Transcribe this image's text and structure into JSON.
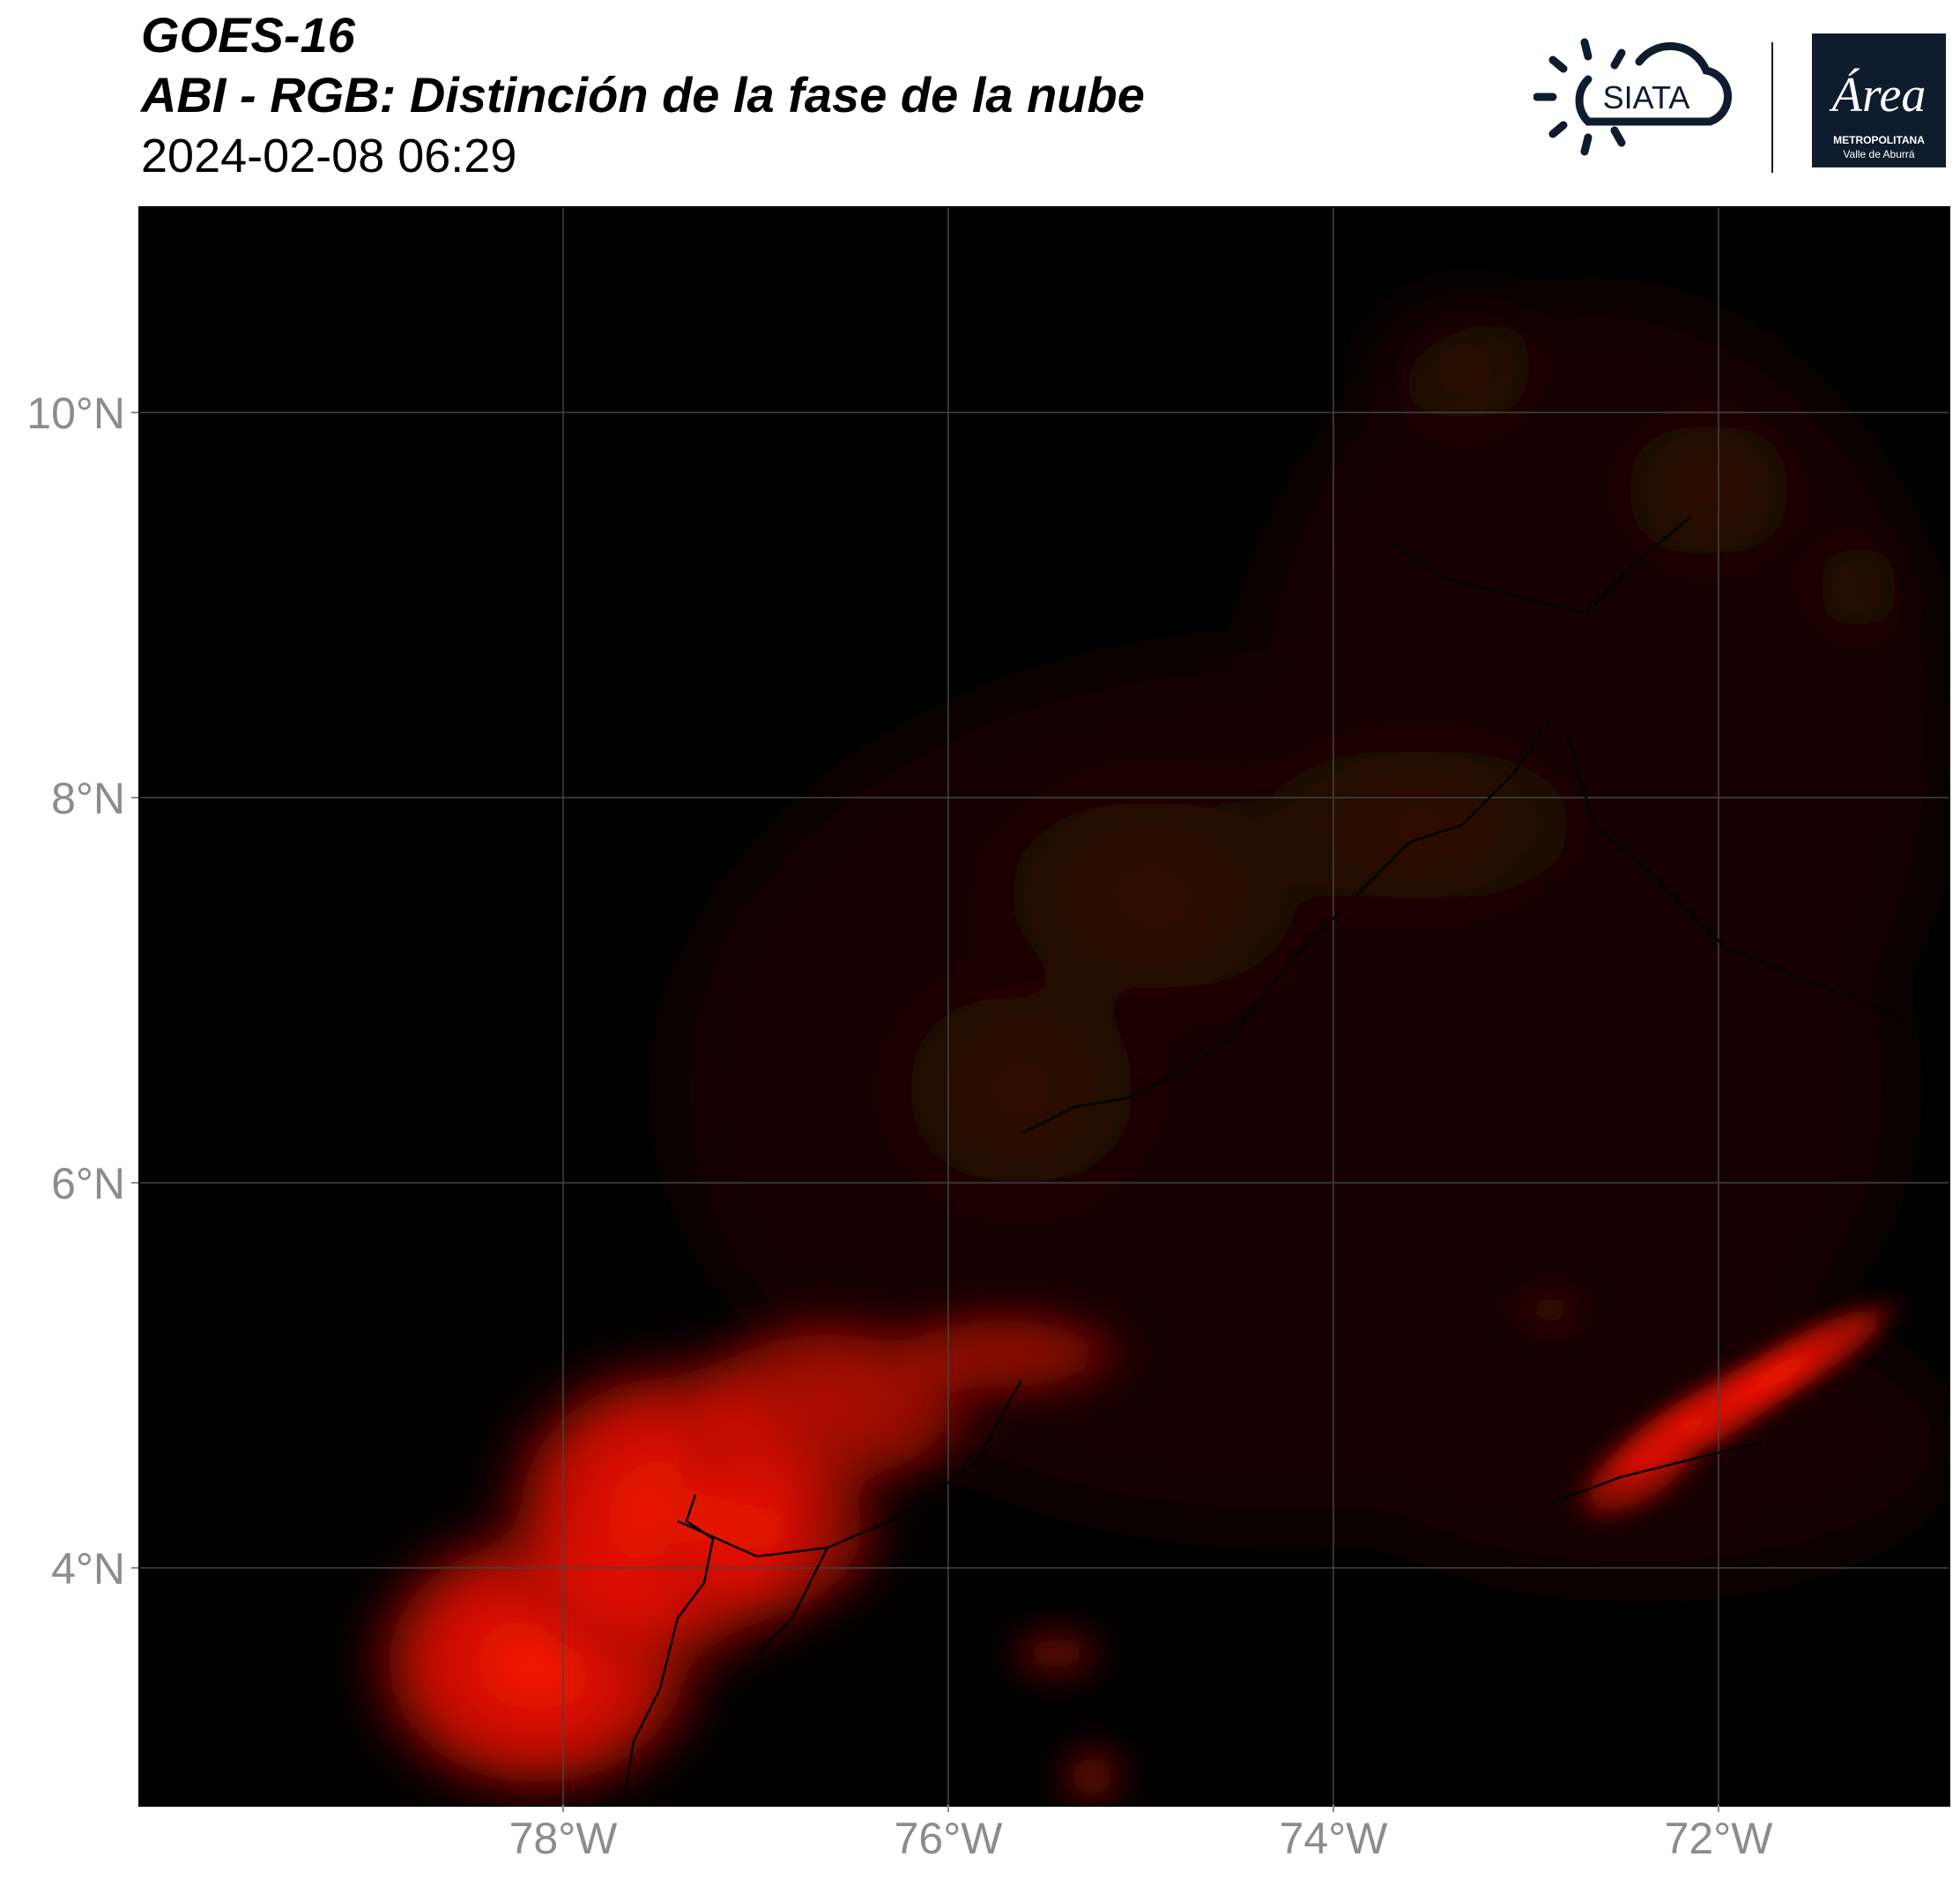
{
  "title": {
    "satellite": "GOES-16",
    "product": "ABI - RGB: Distinción de la fase de la nube",
    "datetime": "2024-02-08 06:29"
  },
  "logos": {
    "siata": "SIATA",
    "amva_script": "Área",
    "amva_line1": "METROPOLITANA",
    "amva_line2": "Valle de Aburrá"
  },
  "map": {
    "lat_ticks": [
      "10°N",
      "8°N",
      "6°N",
      "4°N"
    ],
    "lon_ticks": [
      "78°W",
      "76°W",
      "74°W",
      "72°W"
    ],
    "colors": {
      "background": "#000000",
      "ice_cloud_bright": "#ff1a00",
      "ice_cloud_dim": "#3a0a06",
      "gridline": "#444444",
      "axis_text": "#8c8c8c"
    }
  }
}
